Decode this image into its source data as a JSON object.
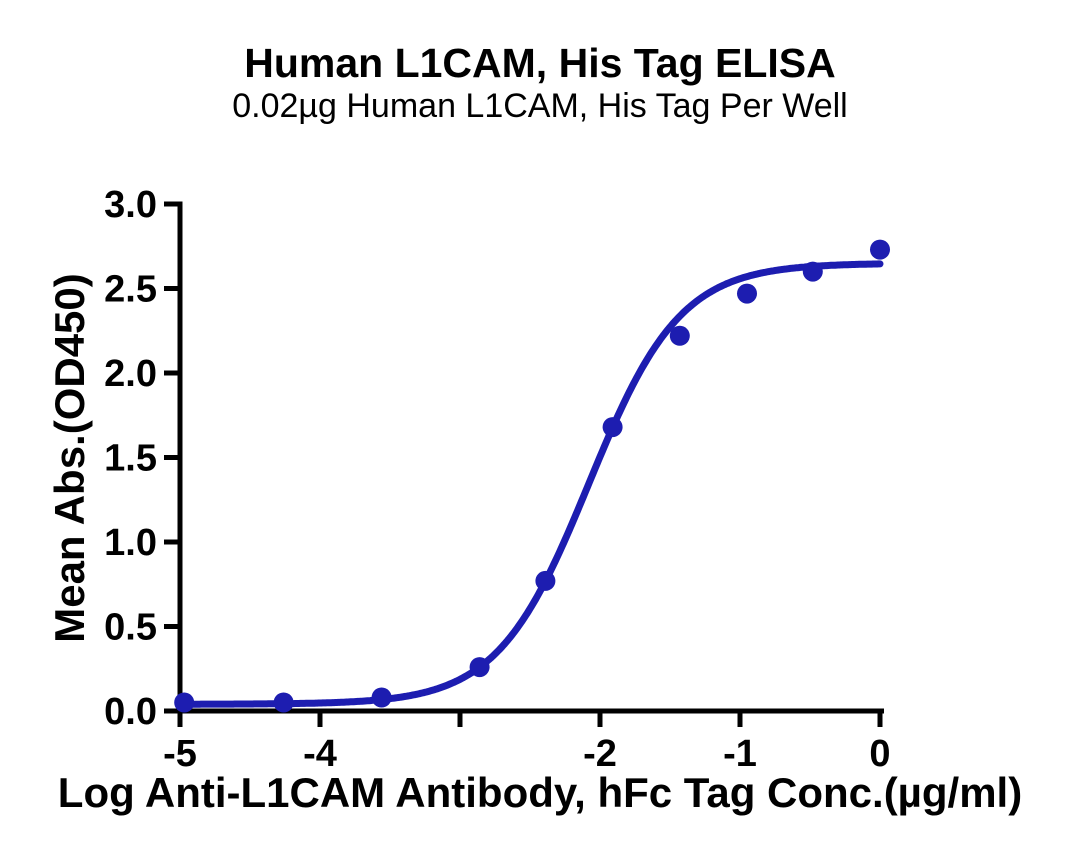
{
  "chart_data": {
    "type": "scatter",
    "title": "Human L1CAM, His Tag ELISA",
    "subtitle": "0.02µg Human L1CAM, His Tag Per Well",
    "xlabel": "Log Anti-L1CAM Antibody, hFc Tag Conc.(µg/ml)",
    "ylabel": "Mean Abs.(OD450)",
    "xlim": [
      -5,
      0
    ],
    "ylim": [
      0,
      3
    ],
    "xticks": [
      -5,
      -4,
      -3,
      -2,
      -1,
      0
    ],
    "xtick_labels": [
      "-5",
      "-4",
      "",
      "-2",
      "-1",
      "0"
    ],
    "yticks": [
      0,
      0.5,
      1,
      1.5,
      2,
      2.5,
      3
    ],
    "ytick_labels": [
      "0.0",
      "0.5",
      "1.0",
      "1.5",
      "2.0",
      "2.5",
      "3.0"
    ],
    "grid": false,
    "legend": false,
    "series_color": "#1d1db0",
    "axis_color": "#000000",
    "points": {
      "x": [
        -4.97,
        -4.26,
        -3.56,
        -2.86,
        -2.39,
        -1.91,
        -1.43,
        -0.95,
        -0.48,
        0.0
      ],
      "od": [
        0.05,
        0.05,
        0.08,
        0.26,
        0.77,
        1.68,
        2.22,
        2.47,
        2.6,
        2.73
      ]
    },
    "fit_curve_4pl": {
      "bottom": 0.04,
      "top": 2.65,
      "log_ec50": -2.08,
      "hill_slope": 1.33
    }
  }
}
